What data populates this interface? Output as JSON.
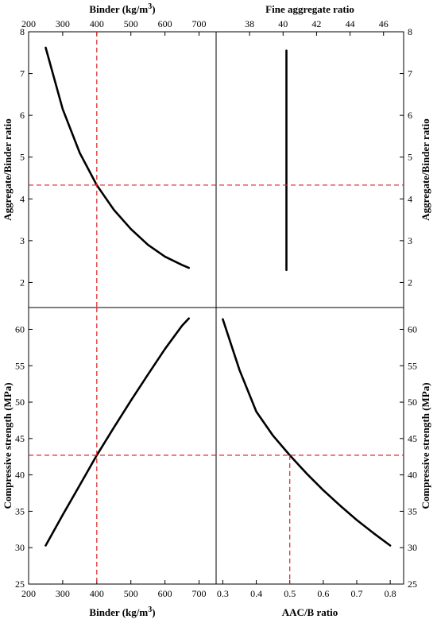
{
  "chart_data": {
    "type": "line",
    "reference_color": "#e02020",
    "line_color": "#000000",
    "reference_point": {
      "binder": 400,
      "aggregate_binder_ratio": 4.33,
      "compressive_strength": 42.7,
      "aac_b_ratio": 0.5
    },
    "panels": [
      {
        "position": "top-left",
        "xlabel": "Binder (kg/m3)",
        "xaxis_side": "top",
        "xlim": [
          200,
          750
        ],
        "xticks": [
          200,
          300,
          400,
          500,
          600,
          700
        ],
        "ylabel": "Aggregate/Binder ratio",
        "yaxis_side": "left",
        "ylim": [
          1.4,
          8
        ],
        "yticks": [
          2,
          3,
          4,
          5,
          6,
          7,
          8
        ],
        "series": [
          {
            "x": [
              250,
              300,
              350,
              400,
              450,
              500,
              550,
              600,
              650,
              670
            ],
            "y": [
              7.62,
              6.15,
              5.1,
              4.33,
              3.74,
              3.28,
              2.9,
              2.62,
              2.42,
              2.35
            ]
          }
        ]
      },
      {
        "position": "top-right",
        "xlabel": "Fine aggregate ratio",
        "xaxis_side": "top",
        "xlim": [
          36,
          47.2
        ],
        "xticks": [
          38,
          40,
          42,
          44,
          46
        ],
        "ylabel": "Aggregate/Binder ratio",
        "yaxis_side": "right",
        "ylim": [
          1.4,
          8
        ],
        "yticks": [
          2,
          3,
          4,
          5,
          6,
          7,
          8
        ],
        "series": [
          {
            "x": [
              40.2,
              40.2
            ],
            "y": [
              2.3,
              7.55
            ]
          }
        ]
      },
      {
        "position": "bottom-left",
        "xlabel": "Binder (kg/m3)",
        "xaxis_side": "bottom",
        "xlim": [
          200,
          750
        ],
        "xticks": [
          200,
          300,
          400,
          500,
          600,
          700
        ],
        "ylabel": "Compressive strength (MPa)",
        "yaxis_side": "left",
        "ylim": [
          25,
          63
        ],
        "yticks": [
          25,
          30,
          35,
          40,
          45,
          50,
          55,
          60
        ],
        "series": [
          {
            "x": [
              250,
              300,
              350,
              400,
              450,
              500,
              550,
              600,
              650,
              670
            ],
            "y": [
              30.3,
              34.5,
              38.6,
              42.7,
              46.5,
              50.2,
              53.8,
              57.3,
              60.5,
              61.5
            ]
          }
        ]
      },
      {
        "position": "bottom-right",
        "xlabel": "AAC/B ratio",
        "xaxis_side": "bottom",
        "xlim": [
          0.28,
          0.84
        ],
        "xticks": [
          0.3,
          0.4,
          0.5,
          0.6,
          0.7,
          0.8
        ],
        "ylabel": "Compressive strength (MPa)",
        "yaxis_side": "right",
        "ylim": [
          25,
          63
        ],
        "yticks": [
          25,
          30,
          35,
          40,
          45,
          50,
          55,
          60
        ],
        "series": [
          {
            "x": [
              0.3,
              0.35,
              0.4,
              0.45,
              0.5,
              0.55,
              0.6,
              0.65,
              0.7,
              0.75,
              0.8
            ],
            "y": [
              61.4,
              54.4,
              48.7,
              45.4,
              42.7,
              40.2,
              37.9,
              35.8,
              33.8,
              32.0,
              30.3
            ]
          }
        ]
      }
    ]
  }
}
